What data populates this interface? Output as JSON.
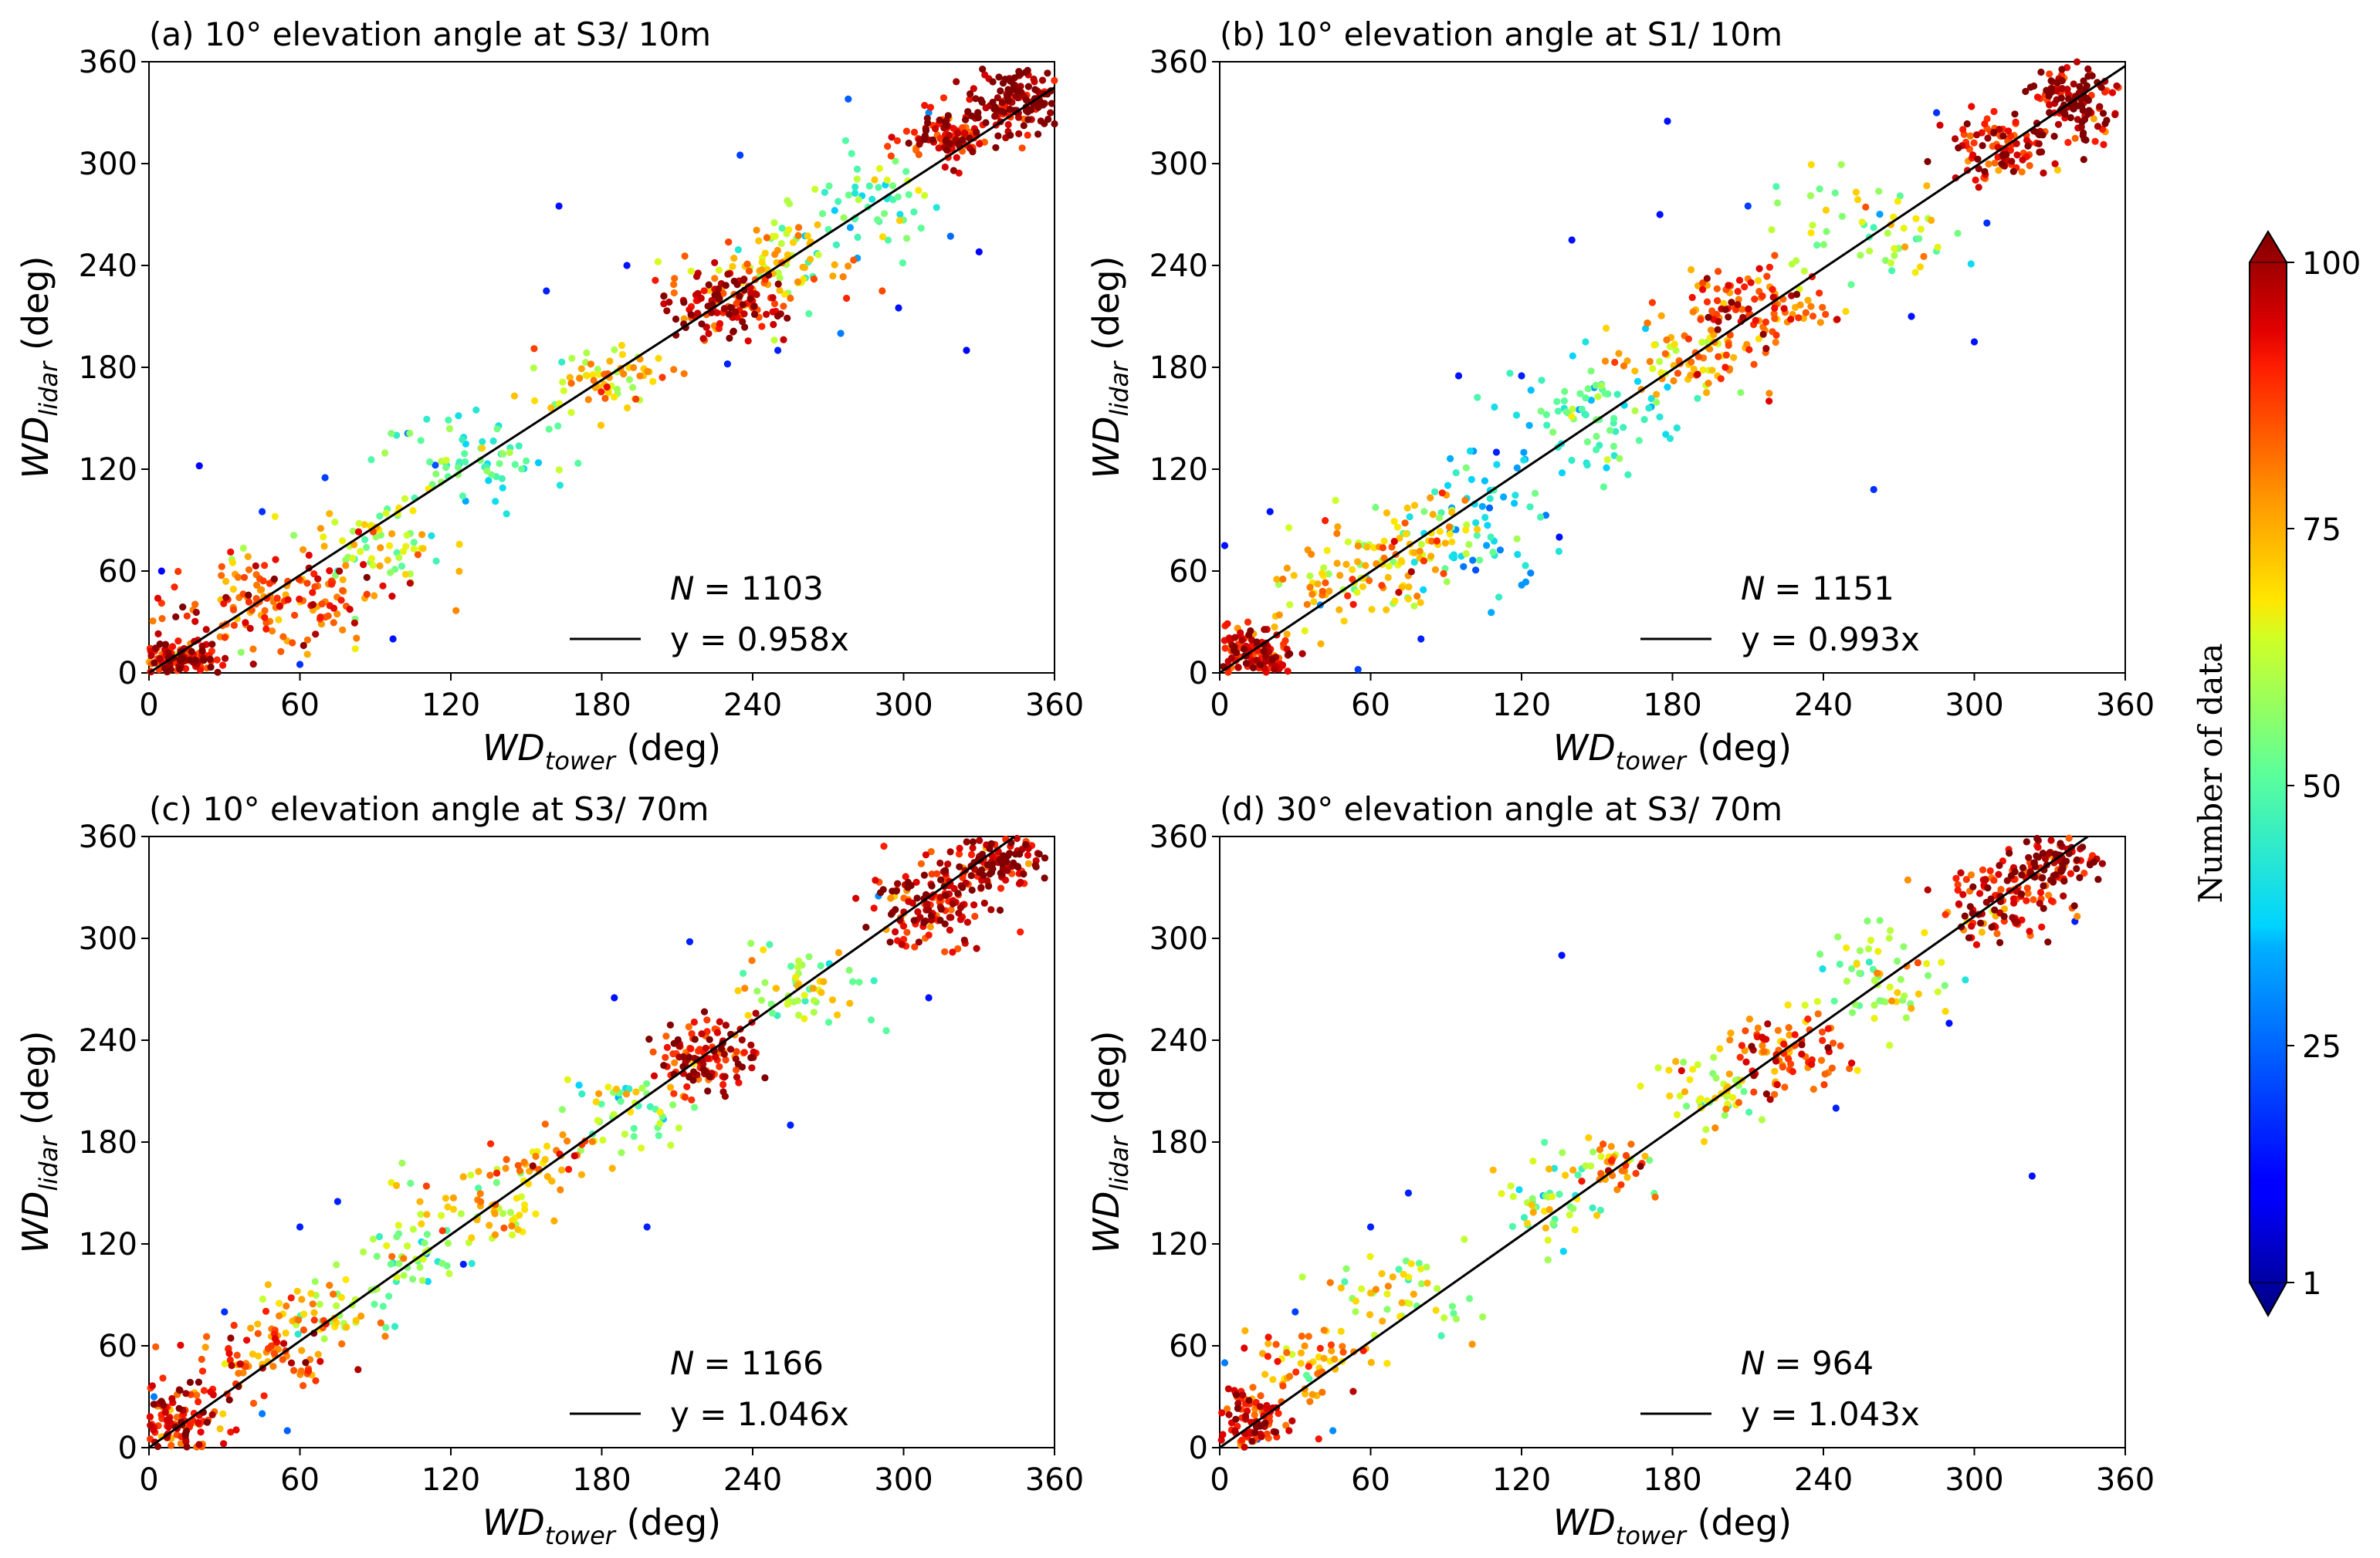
{
  "colorbar": {
    "label": "Number of data",
    "min": 1,
    "max": 100,
    "ticks": [
      1,
      25,
      50,
      75,
      100
    ],
    "tick_labels": [
      "1",
      "25",
      "50",
      "75",
      "100"
    ]
  },
  "chart_data": [
    {
      "type": "scatter",
      "title": "(a) 10° elevation angle at S3/ 10m",
      "xlabel": {
        "main": "WD",
        "sub": "tower",
        "unit": " (deg)"
      },
      "ylabel": {
        "main": "WD",
        "sub": "lidar",
        "unit": " (deg)"
      },
      "xlim": [
        0,
        360
      ],
      "ylim": [
        0,
        360
      ],
      "xticks": [
        0,
        60,
        120,
        180,
        240,
        300,
        360
      ],
      "yticks": [
        0,
        60,
        120,
        180,
        240,
        300,
        360
      ],
      "n_label": "N",
      "n_value": "= 1103",
      "fit_label": "y = 0.958x",
      "slope": 0.958,
      "clusters": [
        {
          "x": 10,
          "y": 8,
          "sx": 10,
          "sy": 6,
          "n": 140,
          "c": 92
        },
        {
          "x": 50,
          "y": 42,
          "sx": 22,
          "sy": 14,
          "n": 160,
          "c": 82
        },
        {
          "x": 90,
          "y": 80,
          "sx": 14,
          "sy": 12,
          "n": 70,
          "c": 62
        },
        {
          "x": 130,
          "y": 125,
          "sx": 20,
          "sy": 14,
          "n": 70,
          "c": 48
        },
        {
          "x": 180,
          "y": 175,
          "sx": 14,
          "sy": 10,
          "n": 70,
          "c": 68
        },
        {
          "x": 228,
          "y": 218,
          "sx": 12,
          "sy": 10,
          "n": 140,
          "c": 90
        },
        {
          "x": 255,
          "y": 240,
          "sx": 14,
          "sy": 14,
          "n": 80,
          "c": 68
        },
        {
          "x": 285,
          "y": 275,
          "sx": 14,
          "sy": 14,
          "n": 60,
          "c": 52
        },
        {
          "x": 320,
          "y": 315,
          "sx": 10,
          "sy": 8,
          "n": 120,
          "c": 90
        },
        {
          "x": 345,
          "y": 338,
          "sx": 8,
          "sy": 8,
          "n": 140,
          "c": 97
        }
      ],
      "outliers": [
        [
          5,
          60,
          12
        ],
        [
          20,
          122,
          12
        ],
        [
          45,
          95,
          18
        ],
        [
          70,
          115,
          20
        ],
        [
          97,
          20,
          14
        ],
        [
          163,
          275,
          14
        ],
        [
          190,
          240,
          14
        ],
        [
          158,
          225,
          16
        ],
        [
          230,
          182,
          16
        ],
        [
          235,
          305,
          20
        ],
        [
          250,
          190,
          16
        ],
        [
          275,
          200,
          28
        ],
        [
          298,
          215,
          14
        ],
        [
          325,
          190,
          12
        ],
        [
          330,
          248,
          12
        ],
        [
          278,
          338,
          24
        ],
        [
          310,
          330,
          30
        ],
        [
          60,
          5,
          18
        ]
      ]
    },
    {
      "type": "scatter",
      "title": "(b) 10° elevation angle at S1/ 10m",
      "xlabel": {
        "main": "WD",
        "sub": "tower",
        "unit": " (deg)"
      },
      "ylabel": {
        "main": "WD",
        "sub": "lidar",
        "unit": " (deg)"
      },
      "xlim": [
        0,
        360
      ],
      "ylim": [
        0,
        360
      ],
      "xticks": [
        0,
        60,
        120,
        180,
        240,
        300,
        360
      ],
      "yticks": [
        0,
        60,
        120,
        180,
        240,
        300,
        360
      ],
      "n_label": "N",
      "n_value": "= 1151",
      "fit_label": "y = 0.993x",
      "slope": 0.993,
      "clusters": [
        {
          "x": 12,
          "y": 12,
          "sx": 10,
          "sy": 8,
          "n": 150,
          "c": 90
        },
        {
          "x": 50,
          "y": 55,
          "sx": 16,
          "sy": 14,
          "n": 80,
          "c": 72
        },
        {
          "x": 80,
          "y": 80,
          "sx": 14,
          "sy": 14,
          "n": 70,
          "c": 68
        },
        {
          "x": 105,
          "y": 85,
          "sx": 12,
          "sy": 22,
          "n": 60,
          "c": 38
        },
        {
          "x": 150,
          "y": 150,
          "sx": 16,
          "sy": 16,
          "n": 80,
          "c": 45
        },
        {
          "x": 185,
          "y": 185,
          "sx": 14,
          "sy": 12,
          "n": 80,
          "c": 72
        },
        {
          "x": 215,
          "y": 215,
          "sx": 14,
          "sy": 12,
          "n": 110,
          "c": 85
        },
        {
          "x": 255,
          "y": 260,
          "sx": 18,
          "sy": 16,
          "n": 60,
          "c": 60
        },
        {
          "x": 310,
          "y": 310,
          "sx": 10,
          "sy": 10,
          "n": 100,
          "c": 88
        },
        {
          "x": 340,
          "y": 335,
          "sx": 10,
          "sy": 12,
          "n": 130,
          "c": 97
        }
      ],
      "outliers": [
        [
          140,
          255,
          14
        ],
        [
          175,
          270,
          14
        ],
        [
          178,
          325,
          14
        ],
        [
          210,
          275,
          20
        ],
        [
          260,
          108,
          18
        ],
        [
          300,
          195,
          14
        ],
        [
          305,
          265,
          18
        ],
        [
          285,
          330,
          18
        ],
        [
          275,
          210,
          14
        ],
        [
          80,
          20,
          16
        ],
        [
          20,
          95,
          14
        ],
        [
          95,
          175,
          14
        ],
        [
          120,
          175,
          16
        ],
        [
          110,
          130,
          16
        ],
        [
          135,
          80,
          14
        ],
        [
          40,
          40,
          30
        ],
        [
          2,
          75,
          14
        ],
        [
          55,
          2,
          20
        ]
      ]
    },
    {
      "type": "scatter",
      "title": "(c) 10° elevation angle at S3/ 70m",
      "xlabel": {
        "main": "WD",
        "sub": "tower",
        "unit": " (deg)"
      },
      "ylabel": {
        "main": "WD",
        "sub": "lidar",
        "unit": " (deg)"
      },
      "xlim": [
        0,
        360
      ],
      "ylim": [
        0,
        360
      ],
      "xticks": [
        0,
        60,
        120,
        180,
        240,
        300,
        360
      ],
      "yticks": [
        0,
        60,
        120,
        180,
        240,
        300,
        360
      ],
      "n_label": "N",
      "n_value": "= 1166",
      "fit_label": "y = 1.046x",
      "slope": 1.046,
      "clusters": [
        {
          "x": 12,
          "y": 15,
          "sx": 10,
          "sy": 10,
          "n": 130,
          "c": 90
        },
        {
          "x": 45,
          "y": 55,
          "sx": 14,
          "sy": 12,
          "n": 80,
          "c": 80
        },
        {
          "x": 70,
          "y": 80,
          "sx": 10,
          "sy": 10,
          "n": 50,
          "c": 68
        },
        {
          "x": 100,
          "y": 110,
          "sx": 14,
          "sy": 14,
          "n": 50,
          "c": 55
        },
        {
          "x": 130,
          "y": 140,
          "sx": 14,
          "sy": 12,
          "n": 60,
          "c": 68
        },
        {
          "x": 160,
          "y": 170,
          "sx": 10,
          "sy": 8,
          "n": 40,
          "c": 76
        },
        {
          "x": 192,
          "y": 200,
          "sx": 12,
          "sy": 12,
          "n": 50,
          "c": 55
        },
        {
          "x": 222,
          "y": 232,
          "sx": 10,
          "sy": 10,
          "n": 130,
          "c": 92
        },
        {
          "x": 260,
          "y": 270,
          "sx": 14,
          "sy": 14,
          "n": 60,
          "c": 60
        },
        {
          "x": 310,
          "y": 320,
          "sx": 12,
          "sy": 12,
          "n": 140,
          "c": 90
        },
        {
          "x": 335,
          "y": 345,
          "sx": 10,
          "sy": 8,
          "n": 120,
          "c": 96
        }
      ],
      "outliers": [
        [
          198,
          130,
          16
        ],
        [
          215,
          298,
          16
        ],
        [
          255,
          190,
          16
        ],
        [
          185,
          265,
          14
        ],
        [
          60,
          130,
          16
        ],
        [
          75,
          145,
          16
        ],
        [
          30,
          80,
          18
        ],
        [
          45,
          20,
          28
        ],
        [
          55,
          10,
          24
        ],
        [
          290,
          325,
          30
        ],
        [
          310,
          265,
          14
        ],
        [
          2,
          30,
          28
        ],
        [
          125,
          108,
          16
        ]
      ]
    },
    {
      "type": "scatter",
      "title": "(d) 30° elevation angle at S3/ 70m",
      "xlabel": {
        "main": "WD",
        "sub": "tower",
        "unit": " (deg)"
      },
      "ylabel": {
        "main": "WD",
        "sub": "lidar",
        "unit": " (deg)"
      },
      "xlim": [
        0,
        360
      ],
      "ylim": [
        0,
        360
      ],
      "xticks": [
        0,
        60,
        120,
        180,
        240,
        300,
        360
      ],
      "yticks": [
        0,
        60,
        120,
        180,
        240,
        300,
        360
      ],
      "n_label": "N",
      "n_value": "= 964",
      "fit_label": "y = 1.043x",
      "slope": 1.043,
      "clusters": [
        {
          "x": 12,
          "y": 15,
          "sx": 10,
          "sy": 12,
          "n": 120,
          "c": 90
        },
        {
          "x": 35,
          "y": 50,
          "sx": 12,
          "sy": 12,
          "n": 60,
          "c": 75
        },
        {
          "x": 75,
          "y": 90,
          "sx": 14,
          "sy": 12,
          "n": 50,
          "c": 62
        },
        {
          "x": 130,
          "y": 145,
          "sx": 12,
          "sy": 14,
          "n": 50,
          "c": 55
        },
        {
          "x": 155,
          "y": 168,
          "sx": 8,
          "sy": 8,
          "n": 40,
          "c": 76
        },
        {
          "x": 195,
          "y": 210,
          "sx": 12,
          "sy": 10,
          "n": 50,
          "c": 62
        },
        {
          "x": 225,
          "y": 232,
          "sx": 12,
          "sy": 12,
          "n": 90,
          "c": 82
        },
        {
          "x": 265,
          "y": 280,
          "sx": 14,
          "sy": 14,
          "n": 60,
          "c": 60
        },
        {
          "x": 310,
          "y": 320,
          "sx": 12,
          "sy": 12,
          "n": 110,
          "c": 90
        },
        {
          "x": 330,
          "y": 345,
          "sx": 10,
          "sy": 8,
          "n": 100,
          "c": 96
        }
      ],
      "outliers": [
        [
          136,
          290,
          14
        ],
        [
          290,
          250,
          14
        ],
        [
          245,
          200,
          16
        ],
        [
          323,
          160,
          14
        ],
        [
          60,
          130,
          16
        ],
        [
          75,
          150,
          16
        ],
        [
          30,
          80,
          20
        ],
        [
          45,
          10,
          30
        ],
        [
          15,
          5,
          24
        ],
        [
          2,
          50,
          28
        ],
        [
          340,
          310,
          16
        ]
      ]
    }
  ]
}
